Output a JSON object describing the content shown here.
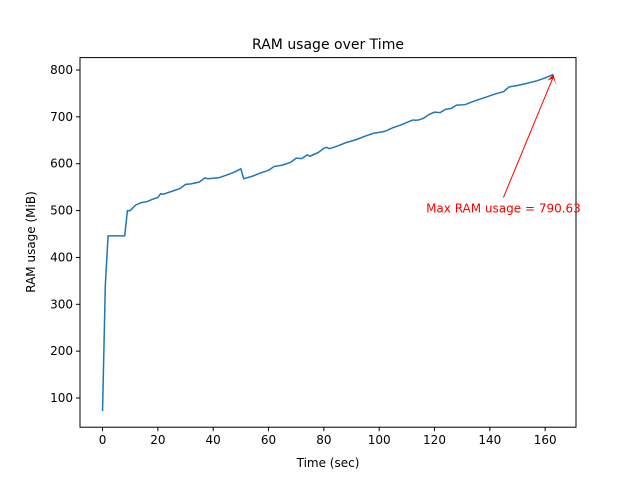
{
  "chart_data": {
    "type": "line",
    "title": "RAM usage over Time",
    "xlabel": "Time (sec)",
    "ylabel": "RAM usage (MiB)",
    "x": [
      0,
      1,
      2,
      8,
      9,
      10,
      12,
      14,
      16,
      18,
      20,
      21,
      22,
      25,
      28,
      30,
      32,
      35,
      37,
      38,
      42,
      45,
      48,
      50,
      51,
      54,
      57,
      60,
      62,
      65,
      68,
      70,
      72,
      74,
      75,
      78,
      80,
      81,
      82,
      85,
      88,
      92,
      95,
      98,
      102,
      105,
      108,
      110,
      112,
      114,
      116,
      118,
      120,
      122,
      124,
      126,
      128,
      131,
      134,
      138,
      142,
      145,
      147,
      150,
      153,
      157,
      160,
      163
    ],
    "series": [
      {
        "name": "RAM usage",
        "color": "#1f77b4",
        "values": [
          72,
          340,
          446,
          446,
          500,
          500,
          512,
          517,
          519,
          524,
          528,
          536,
          535,
          541,
          547,
          556,
          557,
          561,
          570,
          568,
          570,
          576,
          583,
          589,
          568,
          573,
          580,
          586,
          594,
          597,
          603,
          612,
          611,
          619,
          616,
          624,
          633,
          635,
          632,
          638,
          645,
          652,
          659,
          665,
          669,
          677,
          683,
          688,
          693,
          693,
          697,
          705,
          710,
          709,
          716,
          718,
          725,
          726,
          733,
          741,
          749,
          754,
          764,
          767,
          771,
          777,
          783,
          790.63
        ]
      }
    ],
    "xlim": [
      -8.15,
      171.15
    ],
    "ylim": [
      37.7,
      826.5
    ],
    "xticks": [
      0,
      20,
      40,
      60,
      80,
      100,
      120,
      140,
      160
    ],
    "yticks": [
      100,
      200,
      300,
      400,
      500,
      600,
      700,
      800
    ],
    "annotation": {
      "text": "Max RAM usage = 790.63",
      "x": 163,
      "y": 790.63,
      "color": "#ff0000"
    }
  }
}
